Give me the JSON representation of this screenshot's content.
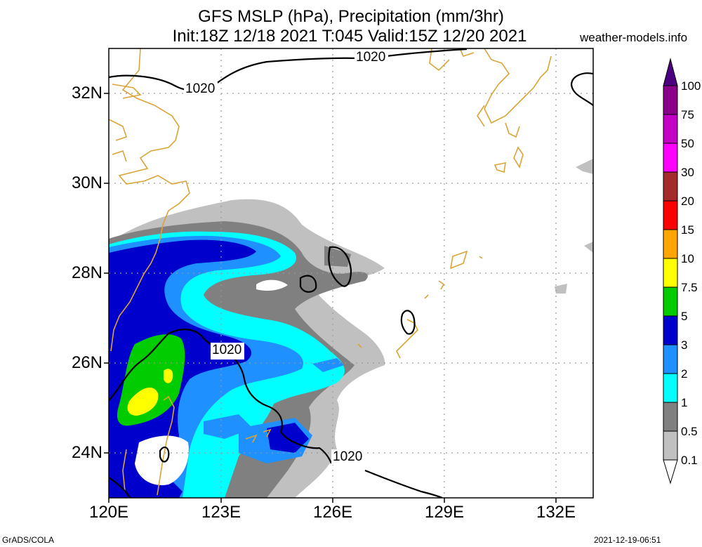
{
  "header": {
    "title": "GFS MSLP (hPa), Precipitation (mm/3hr)",
    "subtitle": "Init:18Z 12/18 2021 T:045 Valid:15Z 12/20 2021",
    "site": "weather-models.info"
  },
  "map": {
    "lat_ticks": [
      "32N",
      "30N",
      "28N",
      "26N",
      "24N"
    ],
    "lon_ticks": [
      "120E",
      "123E",
      "126E",
      "129E",
      "132E"
    ],
    "extent": {
      "lon": [
        120,
        133
      ],
      "lat": [
        23,
        33
      ]
    },
    "isobar_labels": [
      "1020",
      "1020",
      "1020",
      "1020"
    ],
    "colors": {
      "coast": "#daa436",
      "isobar": "#000000",
      "grid": "#999999"
    }
  },
  "colorbar": {
    "labels": [
      "100",
      "75",
      "50",
      "30",
      "20",
      "15",
      "10",
      "7.5",
      "5",
      "3",
      "2",
      "1",
      "0.5",
      "0.1"
    ],
    "colors": [
      "#4b0082",
      "#8b008b",
      "#c400c4",
      "#ff00ff",
      "#a52a2a",
      "#ff0000",
      "#ffa500",
      "#ffff00",
      "#00cc00",
      "#0000cd",
      "#1e90ff",
      "#00ffff",
      "#808080",
      "#c0c0c0"
    ]
  },
  "footer": {
    "left": "GrADS/COLA",
    "right": "2021-12-19-06:51"
  }
}
